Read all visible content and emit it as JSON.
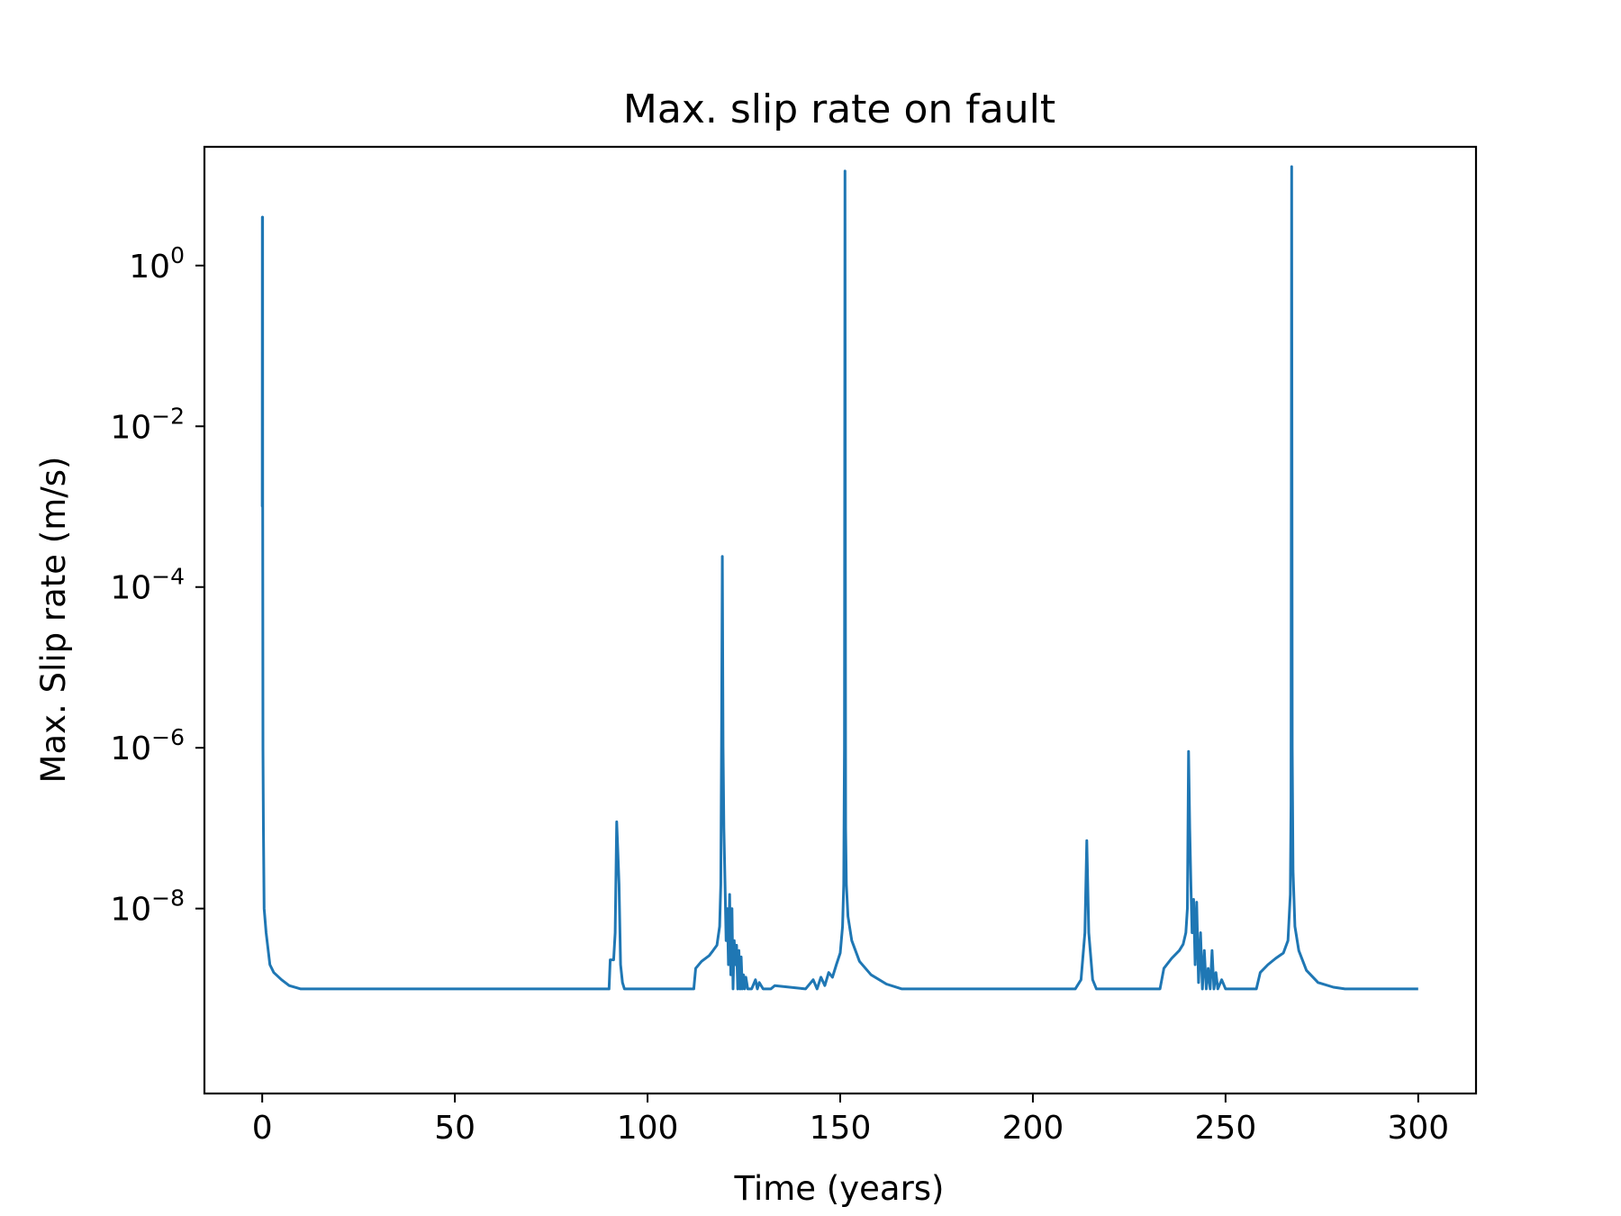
{
  "chart_data": {
    "type": "line",
    "title": "Max. slip rate on fault",
    "xlabel": "Time (years)",
    "ylabel": "Max. Slip rate (m/s)",
    "xscale": "linear",
    "yscale": "log",
    "xlim": [
      -15,
      315
    ],
    "ylim": [
      5e-11,
      30
    ],
    "grid": false,
    "legend": "none",
    "xticks": [
      0,
      50,
      100,
      150,
      200,
      250,
      300
    ],
    "xtick_labels": [
      "0",
      "50",
      "100",
      "150",
      "200",
      "250",
      "300"
    ],
    "yticks": [
      1e-08,
      1e-06,
      0.0001,
      0.01,
      1
    ],
    "ytick_labels": [
      {
        "base": "10",
        "exp": "−8"
      },
      {
        "base": "10",
        "exp": "−6"
      },
      {
        "base": "10",
        "exp": "−4"
      },
      {
        "base": "10",
        "exp": "−2"
      },
      {
        "base": "10",
        "exp": "0"
      }
    ],
    "line_color": "#1f77b4",
    "series": [
      {
        "x": [
          0,
          0.02,
          0.04,
          0.06,
          0.08,
          0.1,
          0.12,
          0.2,
          0.3,
          0.5,
          1,
          2,
          3,
          5,
          7,
          10,
          90,
          90.3,
          91.2,
          91.6,
          92.0,
          92.3,
          92.6,
          93.0,
          93.5,
          94,
          95,
          112,
          112.5,
          114,
          116,
          117,
          118,
          118.7,
          119.0,
          119.2,
          119.4,
          119.6,
          119.8,
          120.1,
          120.4,
          120.7,
          121.0,
          121.3,
          121.6,
          121.9,
          122.2,
          122.5,
          122.8,
          123.1,
          123.4,
          123.7,
          124.0,
          124.3,
          124.6,
          124.9,
          125.2,
          125.5,
          126,
          127,
          128,
          128.5,
          129,
          130,
          132,
          133,
          141,
          143,
          144,
          145,
          146,
          147,
          148,
          149,
          150,
          150.6,
          150.9,
          151.1,
          151.25,
          151.4,
          151.6,
          152,
          153,
          155,
          158,
          162,
          166,
          210,
          211,
          212.5,
          213.5,
          214,
          214.5,
          215.5,
          216.5,
          218,
          233,
          234,
          236,
          238,
          239,
          239.7,
          240.1,
          240.4,
          240.7,
          241.0,
          241.3,
          241.7,
          242.1,
          242.5,
          243,
          243.5,
          244,
          244.5,
          245,
          245.5,
          246,
          246.5,
          247,
          247.5,
          248,
          249,
          250,
          258,
          259,
          261,
          263,
          265,
          266.2,
          266.8,
          267.0,
          267.15,
          267.3,
          267.5,
          268,
          269,
          271,
          274,
          278,
          281,
          300
        ],
        "y": [
          0.001,
          4,
          0.01,
          4,
          0.001,
          4,
          0.001,
          1e-06,
          1e-07,
          1e-08,
          5e-09,
          2e-09,
          1.6e-09,
          1.3e-09,
          1.1e-09,
          1e-09,
          1e-09,
          2.3e-09,
          2.3e-09,
          5e-09,
          1.2e-07,
          5e-08,
          2e-08,
          2e-09,
          1.2e-09,
          1e-09,
          1e-09,
          1e-09,
          1.8e-09,
          2.2e-09,
          2.6e-09,
          3e-09,
          3.5e-09,
          6e-09,
          2e-08,
          1e-06,
          0.00024,
          1e-06,
          1e-07,
          2e-08,
          4e-09,
          1e-08,
          2e-09,
          1.5e-08,
          1.5e-09,
          1e-08,
          1e-09,
          4e-09,
          2e-09,
          3.5e-09,
          1e-09,
          3e-09,
          1e-09,
          2.5e-09,
          1e-09,
          1.5e-09,
          1e-09,
          1.4e-09,
          1e-09,
          1e-09,
          1.3e-09,
          1e-09,
          1.2e-09,
          1e-09,
          1e-09,
          1.1e-09,
          1e-09,
          1.3e-09,
          1e-09,
          1.4e-09,
          1.1e-09,
          1.6e-09,
          1.4e-09,
          2e-09,
          2.8e-09,
          6e-09,
          2e-08,
          1e-06,
          15,
          1e-07,
          2e-08,
          8e-09,
          4e-09,
          2.2e-09,
          1.5e-09,
          1.15e-09,
          1e-09,
          1e-09,
          1e-09,
          1.3e-09,
          5e-09,
          7e-08,
          5e-09,
          1.3e-09,
          1e-09,
          1e-09,
          1e-09,
          1.8e-09,
          2.4e-09,
          3e-09,
          3.6e-09,
          5e-09,
          1e-08,
          9e-07,
          1e-07,
          2e-08,
          5e-09,
          1.3e-08,
          2e-09,
          1.2e-08,
          1.2e-09,
          5e-09,
          1e-09,
          3e-09,
          1e-09,
          1.8e-09,
          1e-09,
          3e-09,
          1e-09,
          1.6e-09,
          1e-09,
          1.3e-09,
          1e-09,
          1e-09,
          1.6e-09,
          2e-09,
          2.4e-09,
          2.8e-09,
          4e-09,
          1.5e-08,
          2e-07,
          17,
          1e-06,
          3e-08,
          6e-09,
          3e-09,
          1.7e-09,
          1.2e-09,
          1.05e-09,
          1e-09,
          1e-09
        ]
      }
    ]
  }
}
